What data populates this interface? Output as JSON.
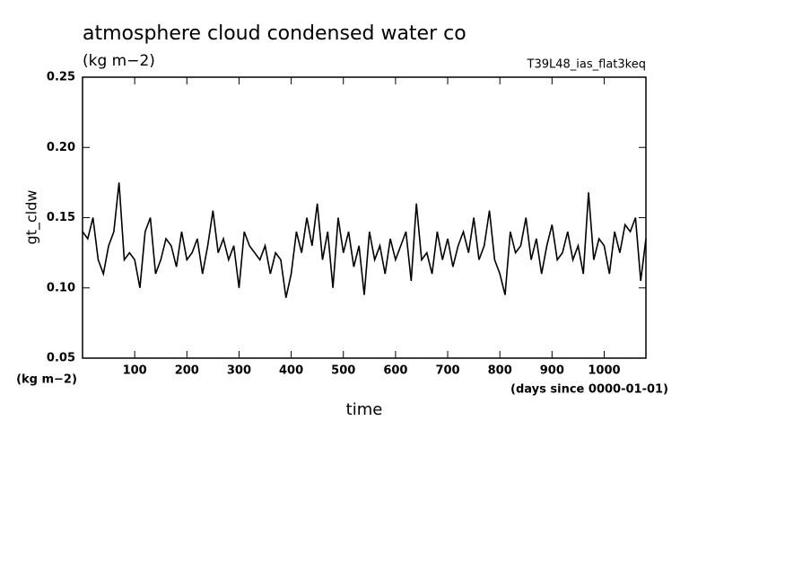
{
  "chart_data": {
    "type": "line",
    "title": "atmosphere cloud condensed water co",
    "subtitle": "(kg m−2)",
    "run_label": "T39L48_ias_flat3keq",
    "y_label": "gt_cldw",
    "y_units": "(kg m−2)",
    "x_label": "time",
    "x_units": "(days since 0000-01-01)",
    "color": "#000000",
    "x": [
      0,
      10,
      20,
      30,
      40,
      50,
      60,
      70,
      80,
      90,
      100,
      110,
      120,
      130,
      140,
      150,
      160,
      170,
      180,
      190,
      200,
      210,
      220,
      230,
      240,
      250,
      260,
      270,
      280,
      290,
      300,
      310,
      320,
      330,
      340,
      350,
      360,
      370,
      380,
      390,
      400,
      410,
      420,
      430,
      440,
      450,
      460,
      470,
      480,
      490,
      500,
      510,
      520,
      530,
      540,
      550,
      560,
      570,
      580,
      590,
      600,
      610,
      620,
      630,
      640,
      650,
      660,
      670,
      680,
      690,
      700,
      710,
      720,
      730,
      740,
      750,
      760,
      770,
      780,
      790,
      800,
      810,
      820,
      830,
      840,
      850,
      860,
      870,
      880,
      890,
      900,
      910,
      920,
      930,
      940,
      950,
      960,
      970,
      980,
      990,
      1000,
      1010,
      1020,
      1030,
      1040,
      1050,
      1060,
      1070,
      1080
    ],
    "values": [
      0.14,
      0.135,
      0.15,
      0.12,
      0.11,
      0.13,
      0.14,
      0.175,
      0.12,
      0.125,
      0.12,
      0.1,
      0.14,
      0.15,
      0.11,
      0.12,
      0.135,
      0.13,
      0.115,
      0.14,
      0.12,
      0.125,
      0.135,
      0.11,
      0.13,
      0.155,
      0.125,
      0.135,
      0.12,
      0.13,
      0.1,
      0.14,
      0.13,
      0.125,
      0.12,
      0.13,
      0.11,
      0.125,
      0.12,
      0.093,
      0.11,
      0.14,
      0.125,
      0.15,
      0.13,
      0.16,
      0.12,
      0.14,
      0.1,
      0.15,
      0.125,
      0.14,
      0.115,
      0.13,
      0.095,
      0.14,
      0.12,
      0.13,
      0.11,
      0.135,
      0.12,
      0.13,
      0.14,
      0.105,
      0.16,
      0.12,
      0.125,
      0.11,
      0.14,
      0.12,
      0.135,
      0.115,
      0.13,
      0.14,
      0.125,
      0.15,
      0.12,
      0.13,
      0.155,
      0.12,
      0.11,
      0.095,
      0.14,
      0.125,
      0.13,
      0.15,
      0.12,
      0.135,
      0.11,
      0.13,
      0.145,
      0.12,
      0.125,
      0.14,
      0.12,
      0.13,
      0.11,
      0.168,
      0.12,
      0.135,
      0.13,
      0.11,
      0.14,
      0.125,
      0.145,
      0.14,
      0.15,
      0.105,
      0.135
    ],
    "xlim": [
      0,
      1080
    ],
    "xticks": [
      100,
      200,
      300,
      400,
      500,
      600,
      700,
      800,
      900,
      1000
    ],
    "ylim": [
      0.05,
      0.25
    ],
    "yticks": [
      0.05,
      {
        "value": 0.1,
        "label": "0.10"
      },
      0.15,
      {
        "value": 0.2,
        "label": "0.20"
      },
      0.25
    ]
  }
}
